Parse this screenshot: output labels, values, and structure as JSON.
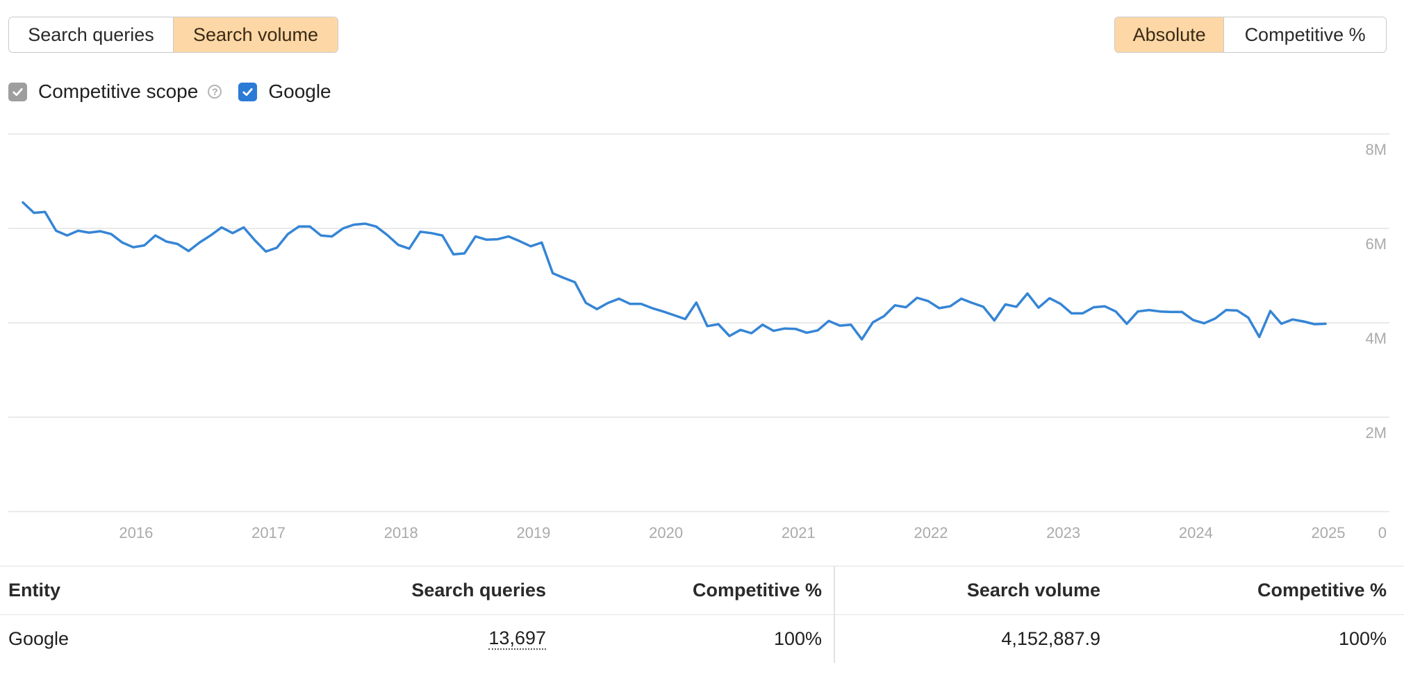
{
  "metric_toggle": {
    "options": [
      "Search queries",
      "Search volume"
    ],
    "active": "Search volume"
  },
  "scale_toggle": {
    "options": [
      "Absolute",
      "Competitive %"
    ],
    "active": "Absolute"
  },
  "filters": {
    "competitive_scope": "Competitive scope",
    "google": "Google"
  },
  "colors": {
    "series": "#3585d5",
    "active_toggle": "#fdd7a6",
    "checkbox_blue": "#2b7bd6",
    "checkbox_gray": "#9e9e9e"
  },
  "chart_data": {
    "type": "line",
    "y_ticks": [
      "0",
      "2M",
      "4M",
      "6M",
      "8M"
    ],
    "x_ticks": [
      "2016",
      "2017",
      "2018",
      "2019",
      "2020",
      "2021",
      "2022",
      "2023",
      "2024",
      "2025"
    ],
    "ylim": [
      0,
      8000000
    ],
    "grid": true,
    "series": [
      {
        "name": "Google",
        "x_start": "2015-08",
        "interval": "month",
        "values": [
          6550000,
          6330000,
          6350000,
          5950000,
          5850000,
          5950000,
          5910000,
          5940000,
          5880000,
          5700000,
          5600000,
          5640000,
          5850000,
          5720000,
          5670000,
          5520000,
          5700000,
          5850000,
          6020000,
          5900000,
          6020000,
          5750000,
          5510000,
          5590000,
          5880000,
          6040000,
          6040000,
          5850000,
          5830000,
          6000000,
          6080000,
          6100000,
          6040000,
          5860000,
          5650000,
          5570000,
          5930000,
          5900000,
          5850000,
          5450000,
          5470000,
          5830000,
          5760000,
          5770000,
          5830000,
          5730000,
          5620000,
          5700000,
          5050000,
          4950000,
          4860000,
          4420000,
          4290000,
          4420000,
          4510000,
          4400000,
          4400000,
          4310000,
          4240000,
          4160000,
          4080000,
          4430000,
          3930000,
          3970000,
          3720000,
          3850000,
          3780000,
          3960000,
          3830000,
          3880000,
          3870000,
          3790000,
          3840000,
          4040000,
          3940000,
          3960000,
          3650000,
          4010000,
          4140000,
          4370000,
          4330000,
          4530000,
          4460000,
          4310000,
          4350000,
          4510000,
          4420000,
          4340000,
          4050000,
          4390000,
          4340000,
          4620000,
          4320000,
          4520000,
          4400000,
          4200000,
          4200000,
          4330000,
          4350000,
          4240000,
          3980000,
          4240000,
          4270000,
          4240000,
          4230000,
          4230000,
          4060000,
          3990000,
          4090000,
          4270000,
          4260000,
          4110000,
          3700000,
          4250000,
          3980000,
          4070000,
          4030000,
          3970000,
          3980000
        ]
      }
    ]
  },
  "table": {
    "headers": [
      "Entity",
      "Search queries",
      "Competitive %",
      "Search volume",
      "Competitive %"
    ],
    "rows": [
      {
        "entity": "Google",
        "search_queries": "13,697",
        "queries_competitive": "100%",
        "search_volume": "4,152,887.9",
        "volume_competitive": "100%"
      }
    ]
  }
}
